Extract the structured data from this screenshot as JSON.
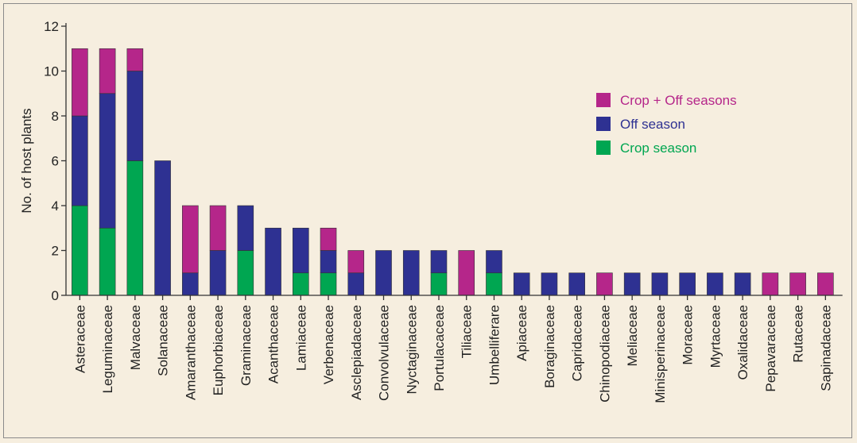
{
  "chart_data": {
    "type": "bar",
    "stacked": true,
    "ylabel": "No. of host plants",
    "xlabel": "",
    "ylim": [
      0,
      12
    ],
    "yticks": [
      0,
      2,
      4,
      6,
      8,
      10,
      12
    ],
    "grid": false,
    "legend_position": "top-right",
    "categories": [
      "Asteraceae",
      "Leguminaceae",
      "Malvaceae",
      "Solanaceae",
      "Amaranthaceae",
      "Euphorbiaceae",
      "Graminaceae",
      "Acanthaceae",
      "Lamiaceae",
      "Verbenaceae",
      "Asclepiadaceae",
      "Convolvulaceae",
      "Nyctaginaceae",
      "Portulacaceae",
      "Tiliaceae",
      "Umbelliferare",
      "Apiaceae",
      "Boraginaceae",
      "Capridaceae",
      "Chinopodiaceae",
      "Meliaceae",
      "Minisperinaceae",
      "Moraceae",
      "Myrtaceae",
      "Oxalidaceae",
      "Pepavaraceae",
      "Rutaceae",
      "Sapinadaceae"
    ],
    "series": [
      {
        "name": "Crop season",
        "color": "#00a651",
        "values": [
          4,
          3,
          6,
          0,
          0,
          0,
          2,
          0,
          1,
          1,
          0,
          0,
          0,
          1,
          0,
          1,
          0,
          0,
          0,
          0,
          0,
          0,
          0,
          0,
          0,
          0,
          0,
          0
        ]
      },
      {
        "name": "Off season",
        "color": "#2e3192",
        "values": [
          4,
          6,
          4,
          6,
          1,
          2,
          2,
          3,
          2,
          1,
          1,
          2,
          2,
          1,
          0,
          1,
          1,
          1,
          1,
          0,
          1,
          1,
          1,
          1,
          1,
          0,
          0,
          0
        ]
      },
      {
        "name": "Crop + Off seasons",
        "color": "#b5268a",
        "values": [
          3,
          2,
          1,
          0,
          3,
          2,
          0,
          0,
          0,
          1,
          1,
          0,
          0,
          0,
          2,
          0,
          0,
          0,
          0,
          1,
          0,
          0,
          0,
          0,
          0,
          1,
          1,
          1
        ]
      }
    ],
    "legend_order": [
      "Crop + Off seasons",
      "Off season",
      "Crop season"
    ]
  }
}
